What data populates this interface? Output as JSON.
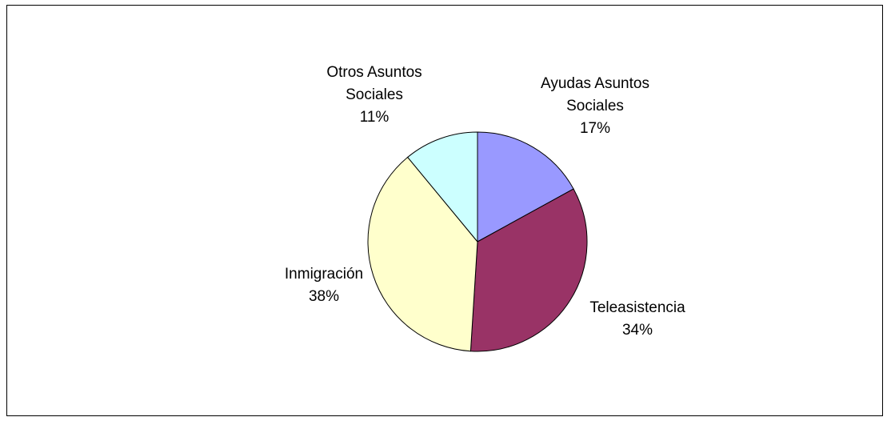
{
  "chart_data": {
    "type": "pie",
    "title": "",
    "slices": [
      {
        "label": [
          "Ayudas Asuntos",
          "Sociales"
        ],
        "value": 17,
        "value_label": "17%",
        "color": "#9999FF"
      },
      {
        "label": [
          "Teleasistencia"
        ],
        "value": 34,
        "value_label": "34%",
        "color": "#993366"
      },
      {
        "label": [
          "Inmigración"
        ],
        "value": 38,
        "value_label": "38%",
        "color": "#FFFFCC"
      },
      {
        "label": [
          "Otros Asuntos",
          "Sociales"
        ],
        "value": 11,
        "value_label": "11%",
        "color": "#CCFFFF"
      }
    ],
    "start_angle": "12 o'clock",
    "direction": "clockwise",
    "legend": "none"
  }
}
